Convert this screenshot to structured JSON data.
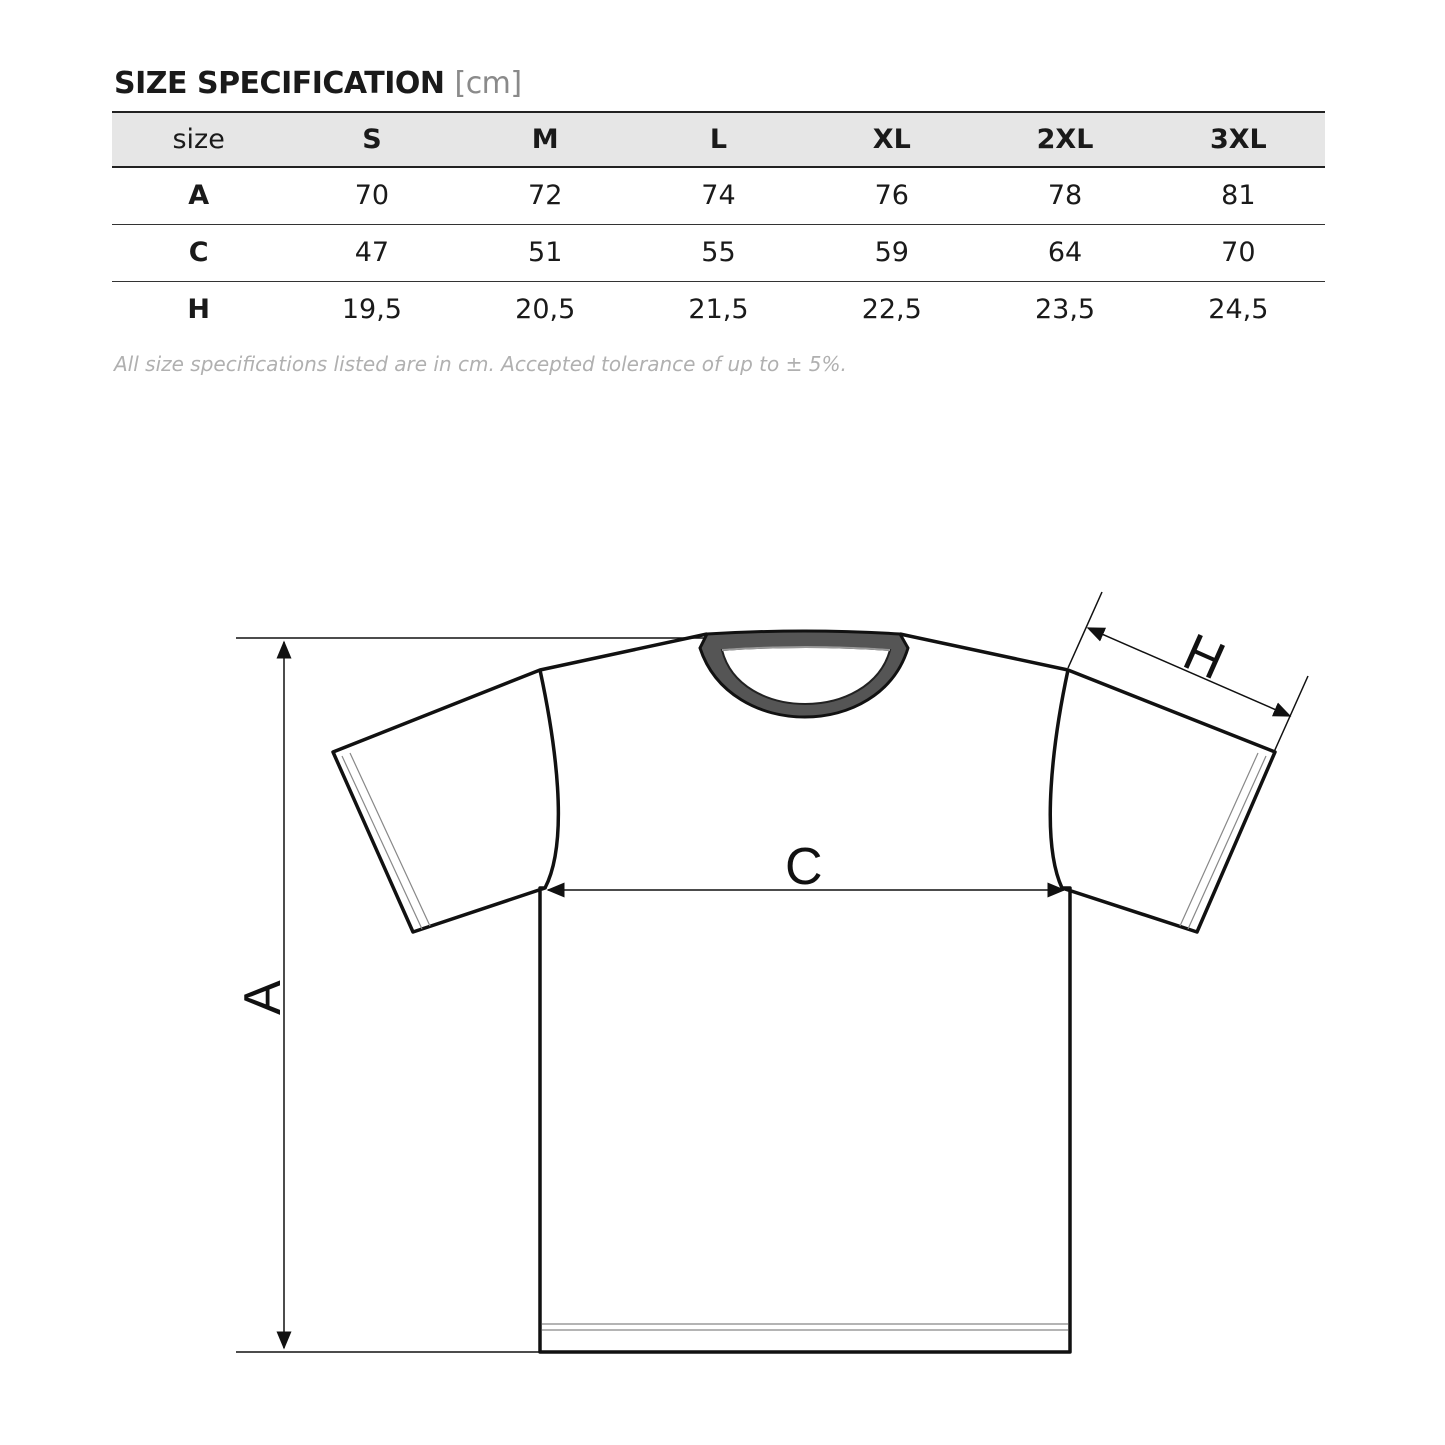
{
  "title": {
    "main": "SIZE SPECIFICATION",
    "unit": "[cm]"
  },
  "table": {
    "header": [
      "size",
      "S",
      "M",
      "L",
      "XL",
      "2XL",
      "3XL"
    ],
    "rows": [
      {
        "label": "A",
        "values": [
          "70",
          "72",
          "74",
          "76",
          "78",
          "81"
        ]
      },
      {
        "label": "C",
        "values": [
          "47",
          "51",
          "55",
          "59",
          "64",
          "70"
        ]
      },
      {
        "label": "H",
        "values": [
          "19,5",
          "20,5",
          "21,5",
          "22,5",
          "23,5",
          "24,5"
        ]
      }
    ]
  },
  "note": "All size specifications listed are in cm. Accepted tolerance of up to ± 5%.",
  "diagram": {
    "label_a": "A",
    "label_c": "C",
    "label_h": "H"
  }
}
